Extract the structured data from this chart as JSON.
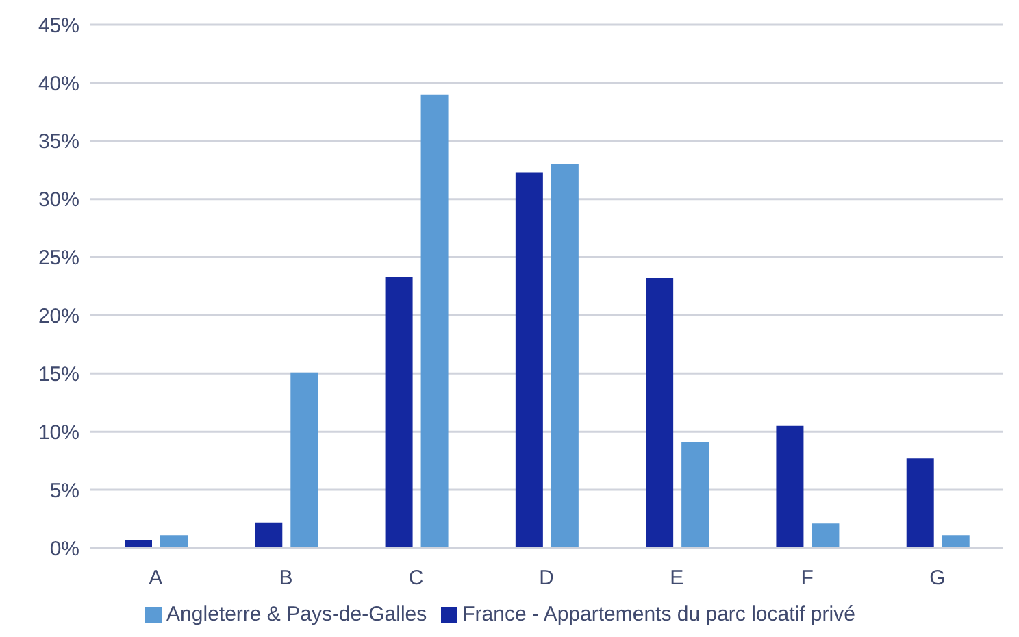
{
  "chart_data": {
    "type": "bar",
    "categories": [
      "A",
      "B",
      "C",
      "D",
      "E",
      "F",
      "G"
    ],
    "series": [
      {
        "name": "France - Appartements du parc locatif privé",
        "color": "#1428a0",
        "values": [
          0.7,
          2.2,
          23.3,
          32.3,
          23.2,
          10.5,
          7.7
        ]
      },
      {
        "name": "Angleterre & Pays-de-Galles",
        "color": "#5b9bd5",
        "values": [
          1.1,
          15.1,
          39.0,
          33.0,
          9.1,
          2.1,
          1.1
        ]
      }
    ],
    "ylim": [
      0,
      45
    ],
    "yticks": [
      {
        "value": 0,
        "label": "0%"
      },
      {
        "value": 5,
        "label": "5%"
      },
      {
        "value": 10,
        "label": "10%"
      },
      {
        "value": 15,
        "label": "15%"
      },
      {
        "value": 20,
        "label": "20%"
      },
      {
        "value": 25,
        "label": "25%"
      },
      {
        "value": 30,
        "label": "30%"
      },
      {
        "value": 35,
        "label": "35%"
      },
      {
        "value": 40,
        "label": "40%"
      },
      {
        "value": 45,
        "label": "45%"
      }
    ],
    "grid": "y",
    "legend": "bottom"
  }
}
